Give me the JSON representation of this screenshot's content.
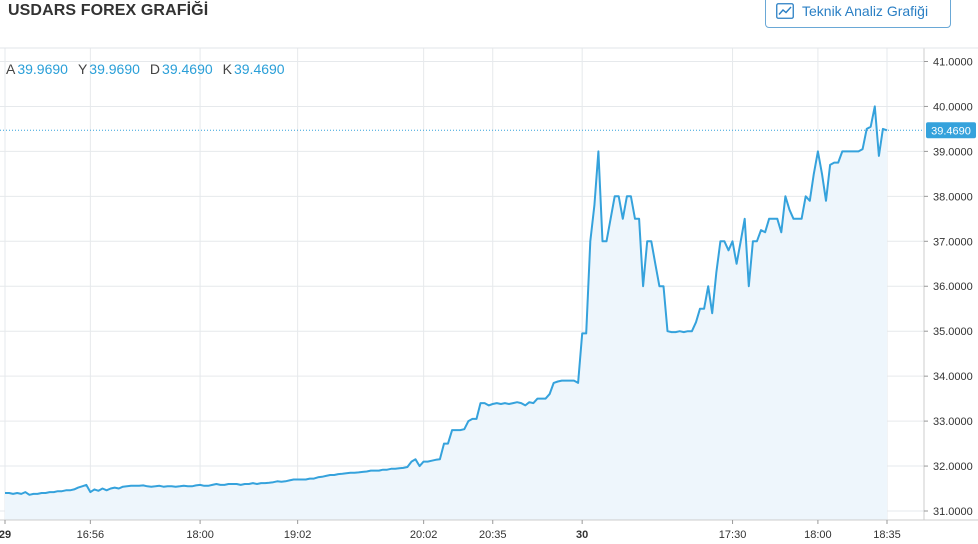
{
  "header": {
    "title": "USDARS FOREX GRAFİĞİ",
    "ta_button_label": "Teknik Analiz Grafiği"
  },
  "ohlc": [
    {
      "key": "A",
      "value": "39.9690"
    },
    {
      "key": "Y",
      "value": "39.9690"
    },
    {
      "key": "D",
      "value": "39.4690"
    },
    {
      "key": "K",
      "value": "39.4690"
    }
  ],
  "colors": {
    "line": "#35a2dc",
    "area": "#eef6fc",
    "grid": "#e6e9ec",
    "axis_text": "#333333",
    "last_price_bg": "#35a2dc",
    "button_border": "#6aa8d6",
    "button_text": "#2a7fc4"
  },
  "icons": {
    "ta_button": "line-chart-icon"
  },
  "chart_data": {
    "type": "area",
    "title": "USDARS FOREX GRAFİĞİ",
    "xlabel": "",
    "ylabel": "",
    "ylim": [
      30.8,
      41.3
    ],
    "grid": true,
    "y_axis_position": "right",
    "y_ticks": [
      "41.0000",
      "40.0000",
      "39.0000",
      "38.0000",
      "37.0000",
      "36.0000",
      "35.0000",
      "34.0000",
      "33.0000",
      "32.0000",
      "31.0000"
    ],
    "y_tick_values": [
      41,
      40,
      39,
      38,
      37,
      36,
      35,
      34,
      33,
      32,
      31
    ],
    "x_ticks": [
      "29",
      "16:56",
      "18:00",
      "19:02",
      "20:02",
      "20:35",
      "30",
      "17:30",
      "18:00",
      "18:35"
    ],
    "x_tick_index": [
      0,
      21,
      48,
      72,
      103,
      120,
      142,
      179,
      200,
      217
    ],
    "last_price": 39.469,
    "last_price_label": "39.4690",
    "values": [
      31.4,
      31.4,
      31.38,
      31.4,
      31.38,
      31.42,
      31.36,
      31.38,
      31.38,
      31.4,
      31.4,
      31.42,
      31.42,
      31.44,
      31.44,
      31.46,
      31.46,
      31.48,
      31.52,
      31.55,
      31.58,
      31.42,
      31.48,
      31.45,
      31.5,
      31.46,
      31.5,
      31.52,
      31.5,
      31.54,
      31.55,
      31.56,
      31.56,
      31.56,
      31.57,
      31.55,
      31.54,
      31.55,
      31.56,
      31.54,
      31.55,
      31.55,
      31.54,
      31.55,
      31.56,
      31.55,
      31.55,
      31.57,
      31.58,
      31.56,
      31.56,
      31.58,
      31.6,
      31.58,
      31.58,
      31.6,
      31.6,
      31.6,
      31.58,
      31.6,
      31.6,
      31.62,
      31.6,
      31.62,
      31.62,
      31.63,
      31.64,
      31.66,
      31.65,
      31.66,
      31.68,
      31.7,
      31.7,
      31.7,
      31.7,
      31.72,
      31.72,
      31.75,
      31.76,
      31.78,
      31.8,
      31.8,
      31.82,
      31.83,
      31.84,
      31.85,
      31.85,
      31.86,
      31.87,
      31.88,
      31.9,
      31.9,
      31.9,
      31.92,
      31.92,
      31.94,
      31.94,
      31.95,
      31.96,
      31.98,
      32.1,
      32.15,
      32.0,
      32.1,
      32.1,
      32.12,
      32.14,
      32.15,
      32.5,
      32.5,
      32.8,
      32.8,
      32.8,
      32.82,
      33.0,
      33.05,
      33.05,
      33.4,
      33.4,
      33.35,
      33.38,
      33.4,
      33.38,
      33.4,
      33.38,
      33.4,
      33.42,
      33.4,
      33.35,
      33.42,
      33.4,
      33.5,
      33.5,
      33.5,
      33.6,
      33.85,
      33.88,
      33.9,
      33.9,
      33.9,
      33.9,
      33.85,
      34.95,
      34.95,
      37.0,
      37.8,
      39.0,
      37.0,
      37.0,
      37.5,
      38.0,
      38.0,
      37.5,
      38.0,
      38.0,
      37.5,
      37.5,
      36.0,
      37.0,
      37.0,
      36.5,
      36.0,
      36.0,
      35.0,
      34.98,
      34.98,
      35.0,
      34.98,
      35.0,
      35.0,
      35.2,
      35.5,
      35.5,
      36.0,
      35.4,
      36.3,
      37.0,
      37.0,
      36.8,
      37.0,
      36.5,
      37.0,
      37.5,
      36.0,
      37.0,
      37.0,
      37.25,
      37.2,
      37.5,
      37.5,
      37.5,
      37.2,
      38.0,
      37.7,
      37.5,
      37.5,
      37.5,
      38.0,
      37.9,
      38.5,
      39.0,
      38.5,
      37.9,
      38.7,
      38.75,
      38.75,
      39.0,
      39.0,
      39.0,
      39.0,
      39.0,
      39.05,
      39.5,
      39.55,
      40.0,
      38.9,
      39.5,
      39.47
    ]
  }
}
